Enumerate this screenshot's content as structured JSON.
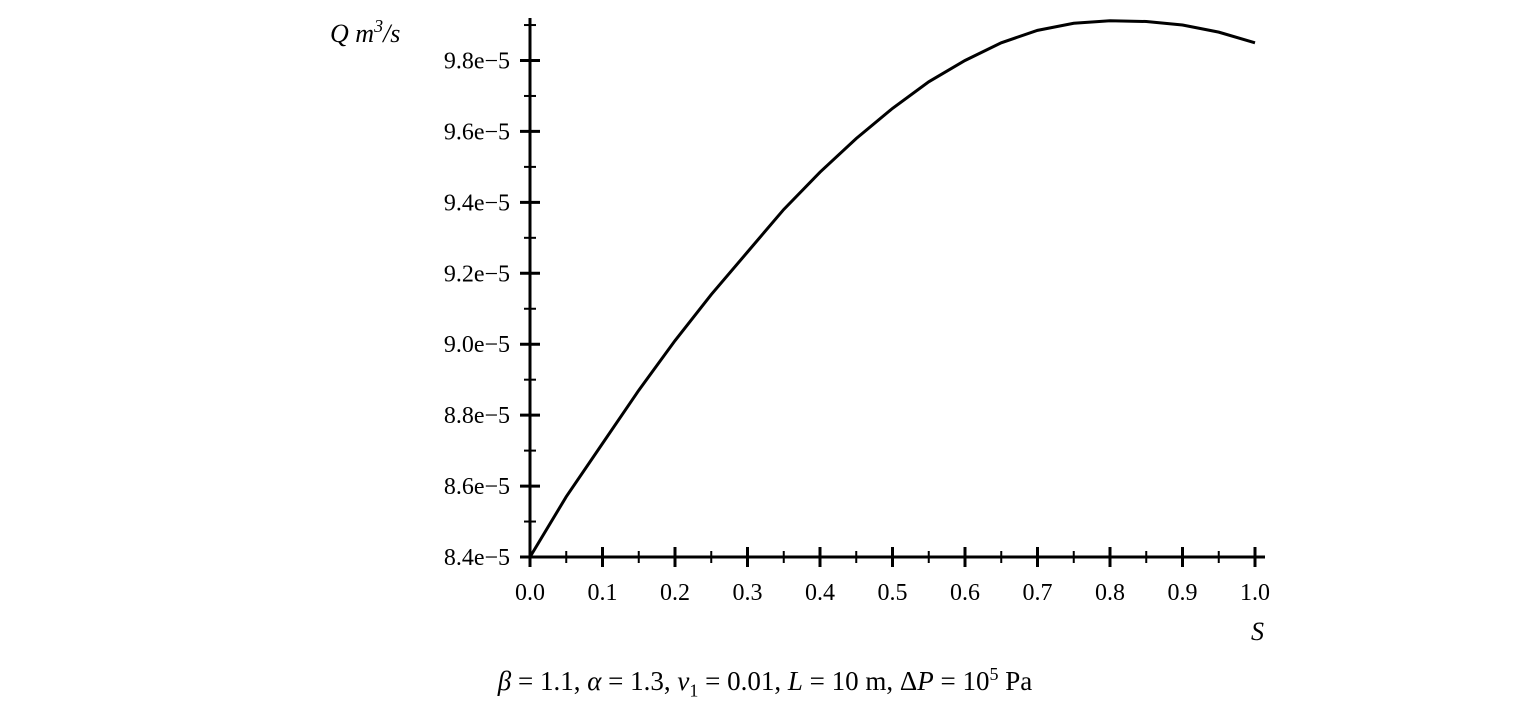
{
  "chart_data": {
    "type": "line",
    "title": "",
    "xlabel": "S",
    "ylabel": {
      "base": "Q m",
      "exponent": "3",
      "suffix": "/s"
    },
    "xlim": [
      0,
      1.0
    ],
    "ylim": [
      8.4e-05,
      9.92e-05
    ],
    "x_ticks": [
      "0.0",
      "0.1",
      "0.2",
      "0.3",
      "0.4",
      "0.5",
      "0.6",
      "0.7",
      "0.8",
      "0.9",
      "1.0"
    ],
    "y_ticks": [
      "8.4e−5",
      "8.6e−5",
      "8.8e−5",
      "9.0e−5",
      "9.2e−5",
      "9.4e−5",
      "9.6e−5",
      "9.8e−5"
    ],
    "y_tick_values": [
      8.4e-05,
      8.6e-05,
      8.8e-05,
      9e-05,
      9.2e-05,
      9.4e-05,
      9.6e-05,
      9.8e-05
    ],
    "grid": false,
    "series": [
      {
        "x": [
          0.0,
          0.05,
          0.1,
          0.15,
          0.2,
          0.25,
          0.3,
          0.35,
          0.4,
          0.45,
          0.5,
          0.55,
          0.6,
          0.65,
          0.7,
          0.75,
          0.8,
          0.85,
          0.9,
          0.95,
          1.0
        ],
        "y": [
          8.4e-05,
          8.57e-05,
          8.72e-05,
          8.87e-05,
          9.01e-05,
          9.14e-05,
          9.26e-05,
          9.38e-05,
          9.485e-05,
          9.58e-05,
          9.665e-05,
          9.74e-05,
          9.8e-05,
          9.85e-05,
          9.885e-05,
          9.905e-05,
          9.912e-05,
          9.91e-05,
          9.9e-05,
          9.88e-05,
          9.85e-05
        ]
      }
    ]
  },
  "caption": {
    "beta": "β",
    "beta_val": " = 1.1, ",
    "alpha": "α",
    "alpha_val": " = 1.3, ",
    "nu": "ν",
    "nu_sub": "1",
    "nu_val": " = 0.01, ",
    "L": "L",
    "L_val": " = 10 m, Δ",
    "P": "P",
    "P_val": " = 10",
    "P_exp": "5",
    "P_unit": " Pa"
  }
}
